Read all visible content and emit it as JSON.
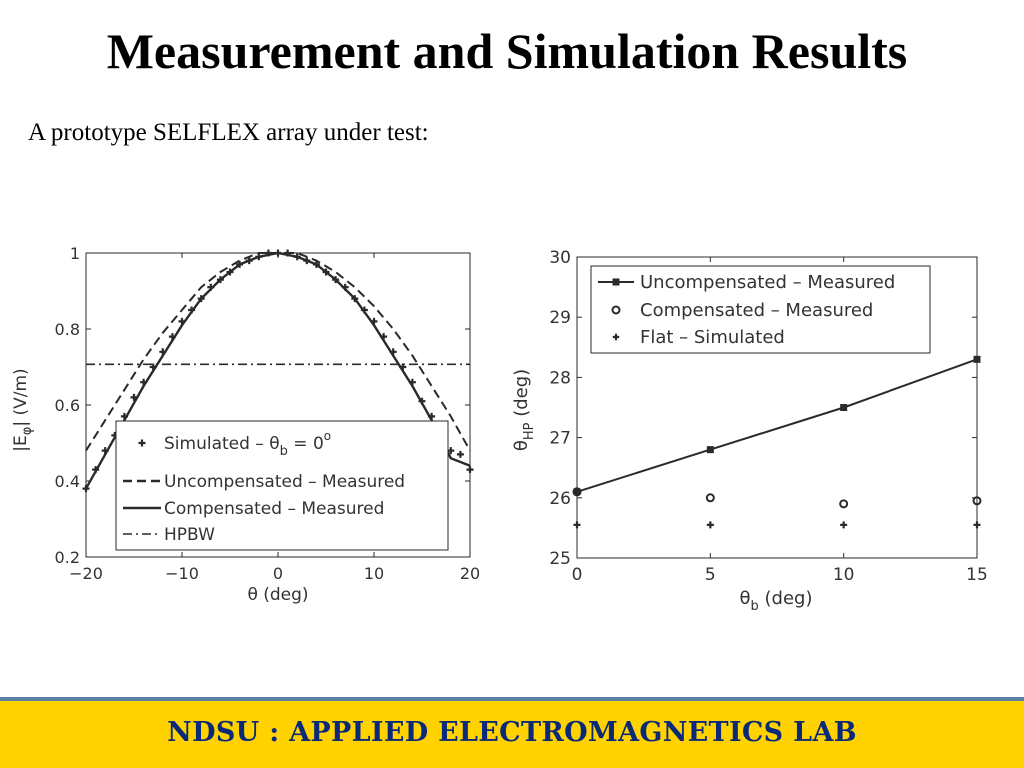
{
  "slide": {
    "title": "Measurement and Simulation Results",
    "subtitle": "A prototype SELFLEX array under test:",
    "footer": "NDSU : APPLIED ELECTROMAGNETICS LAB"
  },
  "chart_data": [
    {
      "type": "line",
      "xlabel": "θ (deg)",
      "ylabel": "|Eφ| (V/m)",
      "xlim": [
        -20,
        20
      ],
      "ylim": [
        0.2,
        1
      ],
      "xticks": [
        -20,
        -10,
        0,
        10,
        20
      ],
      "yticks": [
        0.2,
        0.4,
        0.6,
        0.8,
        1
      ],
      "tick_labels_x": [
        "−20",
        "−10",
        "0",
        "10",
        "20"
      ],
      "tick_labels_y": [
        "0.2",
        "0.4",
        "0.6",
        "0.8",
        "1"
      ],
      "grid": false,
      "legend_position": "bottom-center",
      "legend": [
        "Simulated – θb = 0°",
        "Uncompensated – Measured",
        "Compensated – Measured",
        "HPBW"
      ],
      "series": [
        {
          "name": "Simulated – θb = 0°",
          "style": "plus-markers",
          "x": [
            -20,
            -19,
            -18,
            -17,
            -16,
            -15,
            -14,
            -13,
            -12,
            -11,
            -10,
            -9,
            -8,
            -7,
            -6,
            -5,
            -4,
            -3,
            -2,
            -1,
            0,
            1,
            2,
            3,
            4,
            5,
            6,
            7,
            8,
            9,
            10,
            11,
            12,
            13,
            14,
            15,
            16,
            17,
            18,
            19,
            20
          ],
          "y": [
            0.38,
            0.43,
            0.48,
            0.52,
            0.57,
            0.62,
            0.66,
            0.7,
            0.74,
            0.78,
            0.82,
            0.85,
            0.88,
            0.91,
            0.93,
            0.95,
            0.97,
            0.98,
            0.99,
            1.0,
            1.0,
            1.0,
            0.99,
            0.98,
            0.97,
            0.95,
            0.93,
            0.91,
            0.88,
            0.85,
            0.82,
            0.78,
            0.74,
            0.7,
            0.66,
            0.61,
            0.57,
            0.52,
            0.48,
            0.47,
            0.43
          ]
        },
        {
          "name": "Uncompensated – Measured",
          "style": "dashed",
          "x": [
            -20,
            -18,
            -16,
            -14,
            -12,
            -10,
            -8,
            -6,
            -4,
            -2,
            0,
            2,
            4,
            6,
            8,
            10,
            12,
            14,
            16,
            18,
            20
          ],
          "y": [
            0.48,
            0.56,
            0.64,
            0.72,
            0.79,
            0.85,
            0.91,
            0.95,
            0.98,
            1.0,
            1.0,
            1.0,
            0.98,
            0.95,
            0.91,
            0.86,
            0.8,
            0.73,
            0.65,
            0.57,
            0.48
          ]
        },
        {
          "name": "Compensated – Measured",
          "style": "solid",
          "x": [
            -20,
            -18,
            -16,
            -14,
            -12,
            -10,
            -8,
            -6,
            -4,
            -2,
            0,
            2,
            4,
            6,
            8,
            10,
            12,
            14,
            16,
            18,
            20
          ],
          "y": [
            0.38,
            0.47,
            0.56,
            0.65,
            0.73,
            0.81,
            0.88,
            0.93,
            0.97,
            0.99,
            1.0,
            0.99,
            0.97,
            0.93,
            0.88,
            0.81,
            0.73,
            0.65,
            0.56,
            0.46,
            0.44
          ]
        },
        {
          "name": "HPBW",
          "style": "dash-dot",
          "x": [
            -20,
            20
          ],
          "y": [
            0.707,
            0.707
          ]
        }
      ]
    },
    {
      "type": "line",
      "xlabel": "θb (deg)",
      "ylabel": "θHP (deg)",
      "xlim": [
        0,
        15
      ],
      "ylim": [
        25,
        30
      ],
      "xticks": [
        0,
        5,
        10,
        15
      ],
      "yticks": [
        25,
        26,
        27,
        28,
        29,
        30
      ],
      "tick_labels_x": [
        "0",
        "5",
        "10",
        "15"
      ],
      "tick_labels_y": [
        "25",
        "26",
        "27",
        "28",
        "29",
        "30"
      ],
      "grid": false,
      "legend_position": "top-left",
      "legend": [
        "Uncompensated – Measured",
        "Compensated – Measured",
        "Flat – Simulated"
      ],
      "series": [
        {
          "name": "Uncompensated – Measured",
          "style": "solid-square",
          "x": [
            0,
            5,
            10,
            15
          ],
          "y": [
            26.1,
            26.8,
            27.5,
            28.3
          ]
        },
        {
          "name": "Compensated – Measured",
          "style": "circle-markers",
          "x": [
            0,
            5,
            10,
            15
          ],
          "y": [
            26.1,
            26.0,
            25.9,
            25.95
          ]
        },
        {
          "name": "Flat – Simulated",
          "style": "plus-markers",
          "x": [
            0,
            5,
            10,
            15
          ],
          "y": [
            25.55,
            25.55,
            25.55,
            25.55
          ]
        }
      ]
    }
  ]
}
